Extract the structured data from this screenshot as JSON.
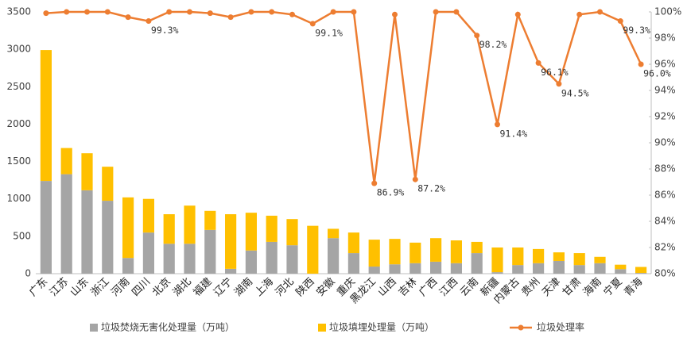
{
  "chart_data": {
    "type": "bar-line",
    "categories": [
      "广东",
      "江苏",
      "山东",
      "浙江",
      "河南",
      "四川",
      "北京",
      "湖北",
      "福建",
      "辽宁",
      "湖南",
      "上海",
      "河北",
      "陕西",
      "安徽",
      "重庆",
      "黑龙江",
      "山西",
      "吉林",
      "广西",
      "江西",
      "云南",
      "新疆",
      "内蒙古",
      "贵州",
      "天津",
      "甘肃",
      "海南",
      "宁夏",
      "青海"
    ],
    "series": [
      {
        "name": "垃圾焚烧无害化处理量（万吨）",
        "color": "#a5a5a5",
        "type": "bar",
        "values": [
          1240,
          1330,
          1115,
          975,
          210,
          550,
          400,
          400,
          585,
          65,
          310,
          425,
          380,
          0,
          475,
          275,
          95,
          125,
          140,
          160,
          140,
          275,
          20,
          115,
          140,
          170,
          115,
          140,
          60,
          10
        ]
      },
      {
        "name": "垃圾填埋处理量（万吨）",
        "color": "#ffc000",
        "type": "bar",
        "values": [
          1750,
          350,
          495,
          455,
          810,
          450,
          395,
          510,
          255,
          730,
          505,
          350,
          350,
          640,
          125,
          275,
          360,
          340,
          275,
          315,
          305,
          150,
          330,
          235,
          190,
          115,
          160,
          85,
          60,
          80
        ]
      },
      {
        "name": "垃圾处理率",
        "color": "#ed7d31",
        "type": "line",
        "axis": "y2",
        "values": [
          99.9,
          100,
          100,
          100,
          99.6,
          99.3,
          100,
          100,
          99.9,
          99.6,
          100,
          100,
          99.8,
          99.1,
          100,
          100,
          86.9,
          99.8,
          87.2,
          100,
          100,
          98.2,
          91.4,
          99.8,
          96.1,
          94.5,
          99.8,
          100,
          99.3,
          96.0
        ],
        "value_labels": [
          null,
          null,
          null,
          null,
          null,
          "99.3%",
          null,
          null,
          null,
          null,
          null,
          null,
          null,
          "99.1%",
          null,
          null,
          "86.9%",
          null,
          "87.2%",
          null,
          null,
          "98.2%",
          "91.4%",
          null,
          "96.1%",
          "94.5%",
          null,
          null,
          "99.3%",
          "96.0%"
        ]
      }
    ],
    "ylim": [
      0,
      3500
    ],
    "yticks": [
      0,
      500,
      1000,
      1500,
      2000,
      2500,
      3000,
      3500
    ],
    "y2lim": [
      80,
      100
    ],
    "y2ticks": [
      {
        "value": 80,
        "label": "80%"
      },
      {
        "value": 82,
        "label": "82%"
      },
      {
        "value": 84,
        "label": "84%"
      },
      {
        "value": 86,
        "label": "86%"
      },
      {
        "value": 88,
        "label": "88%"
      },
      {
        "value": 90,
        "label": "90%"
      },
      {
        "value": 92,
        "label": "92%"
      },
      {
        "value": 94,
        "label": "94%"
      },
      {
        "value": 96,
        "label": "96%"
      },
      {
        "value": 98,
        "label": "98%"
      },
      {
        "value": 100,
        "label": "100%"
      }
    ],
    "grid": false,
    "legend": "bottom"
  }
}
